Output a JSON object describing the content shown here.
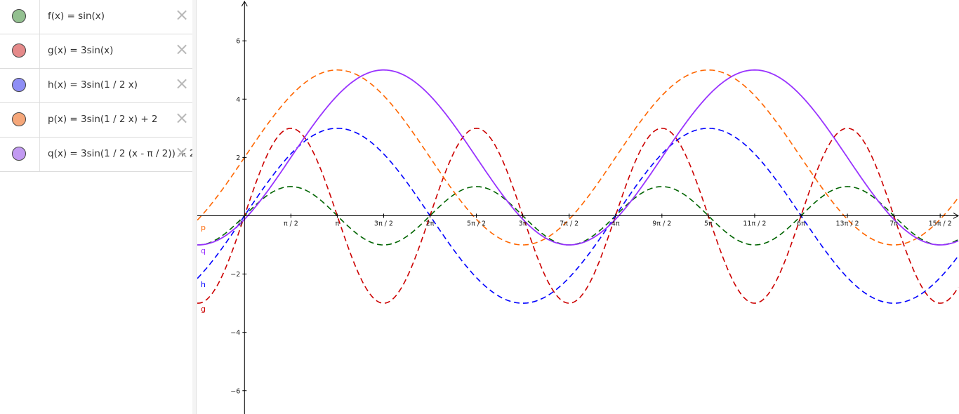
{
  "algebra": {
    "rows": [
      {
        "text": "f(x) = sin(x)",
        "color": "#93C090",
        "close": "×"
      },
      {
        "text": "g(x) = 3sin(x)",
        "color": "#E58A8A",
        "close": "×"
      },
      {
        "text": "h(x) = 3sin(1 / 2 x)",
        "color": "#8E8EF5",
        "close": "×"
      },
      {
        "text": "p(x) = 3sin(1 / 2 x) + 2",
        "color": "#F5A77A",
        "close": "×"
      },
      {
        "text": "q(x) = 3sin(1 / 2 (x - π / 2)) + 2",
        "color": "#C29AF2",
        "close": "×"
      }
    ]
  },
  "graphics": {
    "x_tick_labels": [
      "0",
      "π / 2",
      "π",
      "3π / 2",
      "2π",
      "5π / 2",
      "3π",
      "7π / 2",
      "4π",
      "9π / 2",
      "5π",
      "11π / 2",
      "6π",
      "13π / 2",
      "7π",
      "15π / 2"
    ],
    "y_tick_labels": [
      "6",
      "4",
      "2",
      "−2",
      "−4",
      "−6"
    ],
    "curve_labels": {
      "p": "p",
      "q": "q",
      "h": "h",
      "g": "g"
    }
  },
  "chart_data": {
    "type": "line",
    "xlim": [
      -1.6,
      24.2
    ],
    "ylim": [
      -6.8,
      7.4
    ],
    "x_ticks": [
      0,
      1.5708,
      3.1416,
      4.7124,
      6.2832,
      7.854,
      9.4248,
      10.9956,
      12.5664,
      14.1372,
      15.708,
      17.2788,
      18.8496,
      20.4204,
      21.9911,
      23.5619
    ],
    "y_ticks": [
      6,
      4,
      2,
      -2,
      -4,
      -6
    ],
    "grid": false,
    "series": [
      {
        "name": "f",
        "expr": "sin(x)",
        "amp": 1,
        "freq": 1,
        "phase": 0,
        "shift": 0,
        "color": "#006400",
        "dashed": true
      },
      {
        "name": "g",
        "expr": "3sin(x)",
        "amp": 3,
        "freq": 1,
        "phase": 0,
        "shift": 0,
        "color": "#CC0000",
        "dashed": true
      },
      {
        "name": "h",
        "expr": "3sin(1 / 2 x)",
        "amp": 3,
        "freq": 0.5,
        "phase": 0,
        "shift": 0,
        "color": "#0000FF",
        "dashed": true
      },
      {
        "name": "p",
        "expr": "3sin(1 / 2 x) + 2",
        "amp": 3,
        "freq": 0.5,
        "phase": 0,
        "shift": 2,
        "color": "#FF6600",
        "dashed": true
      },
      {
        "name": "q",
        "expr": "3sin(1 / 2 (x - π / 2)) + 2",
        "amp": 3,
        "freq": 0.5,
        "phase": 1.5708,
        "shift": 2,
        "color": "#9933FF",
        "dashed": false
      }
    ]
  }
}
